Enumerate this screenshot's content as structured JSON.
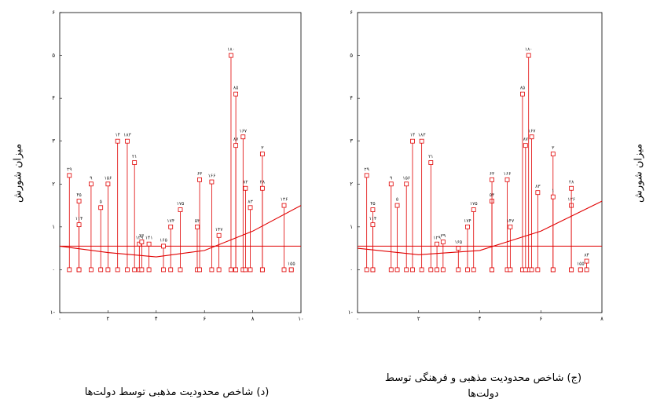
{
  "page": {
    "y_axis_label": "میزان شورش",
    "caption_left": "(د) شاخص محدودیت مذهبی توسط دولت‌ها",
    "caption_right_line1": "(ج) شاخص محدودیت مذهبی و فرهنگی توسط",
    "caption_right_line2": "دولت‌ها"
  },
  "chart_data": [
    {
      "type": "scatter",
      "title": "",
      "xlabel": "(د) شاخص محدودیت مذهبی توسط دولت‌ها",
      "ylabel": "میزان شورش",
      "xlim": [
        0,
        10
      ],
      "ylim": [
        -1,
        6
      ],
      "x_ticks": [
        "۰",
        "۲",
        "۴",
        "۶",
        "۸",
        "۱۰"
      ],
      "y_ticks": [
        "۱-",
        "۰",
        "۱",
        "۲",
        "۳",
        "۴",
        "۵",
        "۶"
      ],
      "baseline": 0.55,
      "color": "#e00000",
      "points": [
        {
          "x": 0.4,
          "y": 2.2,
          "label": "۲۹"
        },
        {
          "x": 0.8,
          "y": 1.6,
          "label": "۴۵"
        },
        {
          "x": 0.8,
          "y": 1.05,
          "label": "۱۱۴"
        },
        {
          "x": 1.3,
          "y": 2.0,
          "label": "۹"
        },
        {
          "x": 1.7,
          "y": 1.45,
          "label": "۵"
        },
        {
          "x": 2.0,
          "y": 2.0,
          "label": "۱۵۶"
        },
        {
          "x": 2.4,
          "y": 3.0,
          "label": "۱۴"
        },
        {
          "x": 2.8,
          "y": 3.0,
          "label": "۱۸۳"
        },
        {
          "x": 3.1,
          "y": 2.5,
          "label": "۲۱"
        },
        {
          "x": 3.3,
          "y": 0.6,
          "label": "۱۲۹"
        },
        {
          "x": 3.4,
          "y": 0.65,
          "label": "۳۶"
        },
        {
          "x": 3.7,
          "y": 0.6,
          "label": "۱۴۱"
        },
        {
          "x": 4.3,
          "y": 0.55,
          "label": "۱۶۵"
        },
        {
          "x": 4.6,
          "y": 1.0,
          "label": "۱۷۴"
        },
        {
          "x": 5.0,
          "y": 1.4,
          "label": "۱۷۵"
        },
        {
          "x": 5.7,
          "y": 1.0,
          "label": "۵۳"
        },
        {
          "x": 5.8,
          "y": 2.1,
          "label": "۶۳"
        },
        {
          "x": 6.3,
          "y": 2.05,
          "label": "۱۶۶"
        },
        {
          "x": 6.6,
          "y": 0.8,
          "label": "۱۴۷"
        },
        {
          "x": 7.1,
          "y": 5.0,
          "label": "۱۸۰"
        },
        {
          "x": 7.3,
          "y": 4.1,
          "label": "۸۵"
        },
        {
          "x": 7.3,
          "y": 2.9,
          "label": "۸۷"
        },
        {
          "x": 7.6,
          "y": 3.1,
          "label": "۱۶۷"
        },
        {
          "x": 7.7,
          "y": 1.9,
          "label": "۸۲"
        },
        {
          "x": 7.9,
          "y": 1.45,
          "label": "۸۳"
        },
        {
          "x": 8.4,
          "y": 2.7,
          "label": "۳"
        },
        {
          "x": 8.4,
          "y": 1.9,
          "label": "۲۸"
        },
        {
          "x": 9.3,
          "y": 1.5,
          "label": "۱۳۶"
        },
        {
          "x": 9.6,
          "y": 0.0,
          "label": "۱۵۵"
        }
      ],
      "fit_line": [
        [
          0,
          0.55
        ],
        [
          2,
          0.4
        ],
        [
          4,
          0.3
        ],
        [
          6,
          0.45
        ],
        [
          8,
          0.9
        ],
        [
          10,
          1.5
        ]
      ]
    },
    {
      "type": "scatter",
      "title": "",
      "xlabel": "(ج) شاخص محدودیت مذهبی و فرهنگی توسط دولت‌ها",
      "ylabel": "میزان شورش",
      "xlim": [
        0,
        8
      ],
      "ylim": [
        -1,
        6
      ],
      "x_ticks": [
        "۰",
        "۲",
        "۴",
        "۶",
        "۸"
      ],
      "y_ticks": [
        "۱-",
        "۰",
        "۱",
        "۲",
        "۳",
        "۴",
        "۵",
        "۶"
      ],
      "baseline": 0.55,
      "color": "#e00000",
      "points": [
        {
          "x": 0.3,
          "y": 2.2,
          "label": "۲۹"
        },
        {
          "x": 0.5,
          "y": 1.4,
          "label": "۴۵"
        },
        {
          "x": 0.5,
          "y": 1.05,
          "label": "۱۱۴"
        },
        {
          "x": 1.1,
          "y": 2.0,
          "label": "۹"
        },
        {
          "x": 1.3,
          "y": 1.5,
          "label": "۵"
        },
        {
          "x": 1.6,
          "y": 2.0,
          "label": "۱۵۶"
        },
        {
          "x": 1.8,
          "y": 3.0,
          "label": "۱۴"
        },
        {
          "x": 2.1,
          "y": 3.0,
          "label": "۱۸۳"
        },
        {
          "x": 2.4,
          "y": 2.5,
          "label": "۲۱"
        },
        {
          "x": 2.6,
          "y": 0.6,
          "label": "۱۲۹"
        },
        {
          "x": 2.8,
          "y": 0.65,
          "label": "۳۹"
        },
        {
          "x": 3.3,
          "y": 0.5,
          "label": "۱۶۵"
        },
        {
          "x": 3.6,
          "y": 1.0,
          "label": "۱۷۴"
        },
        {
          "x": 3.8,
          "y": 1.4,
          "label": "۱۷۵"
        },
        {
          "x": 4.4,
          "y": 1.6,
          "label": "۵۳"
        },
        {
          "x": 4.4,
          "y": 2.1,
          "label": "۶۳"
        },
        {
          "x": 4.9,
          "y": 2.1,
          "label": "۱۶۶"
        },
        {
          "x": 5.0,
          "y": 1.0,
          "label": "۱۴۷"
        },
        {
          "x": 5.4,
          "y": 4.1,
          "label": "۸۵"
        },
        {
          "x": 5.6,
          "y": 5.0,
          "label": "۱۸۰"
        },
        {
          "x": 5.5,
          "y": 2.9,
          "label": "۸۷"
        },
        {
          "x": 5.7,
          "y": 3.1,
          "label": "۱۶۷"
        },
        {
          "x": 5.9,
          "y": 1.8,
          "label": "۸۳"
        },
        {
          "x": 6.4,
          "y": 2.7,
          "label": "۳"
        },
        {
          "x": 6.4,
          "y": 1.7,
          "label": "۱"
        },
        {
          "x": 7.0,
          "y": 1.5,
          "label": "۱۳۶"
        },
        {
          "x": 7.0,
          "y": 1.9,
          "label": "۲۸"
        },
        {
          "x": 7.3,
          "y": 0.0,
          "label": "۱۵۵"
        },
        {
          "x": 7.5,
          "y": 0.2,
          "label": "۸۴"
        }
      ],
      "fit_line": [
        [
          0,
          0.5
        ],
        [
          2,
          0.35
        ],
        [
          4,
          0.45
        ],
        [
          6,
          0.9
        ],
        [
          8,
          1.6
        ]
      ]
    }
  ]
}
